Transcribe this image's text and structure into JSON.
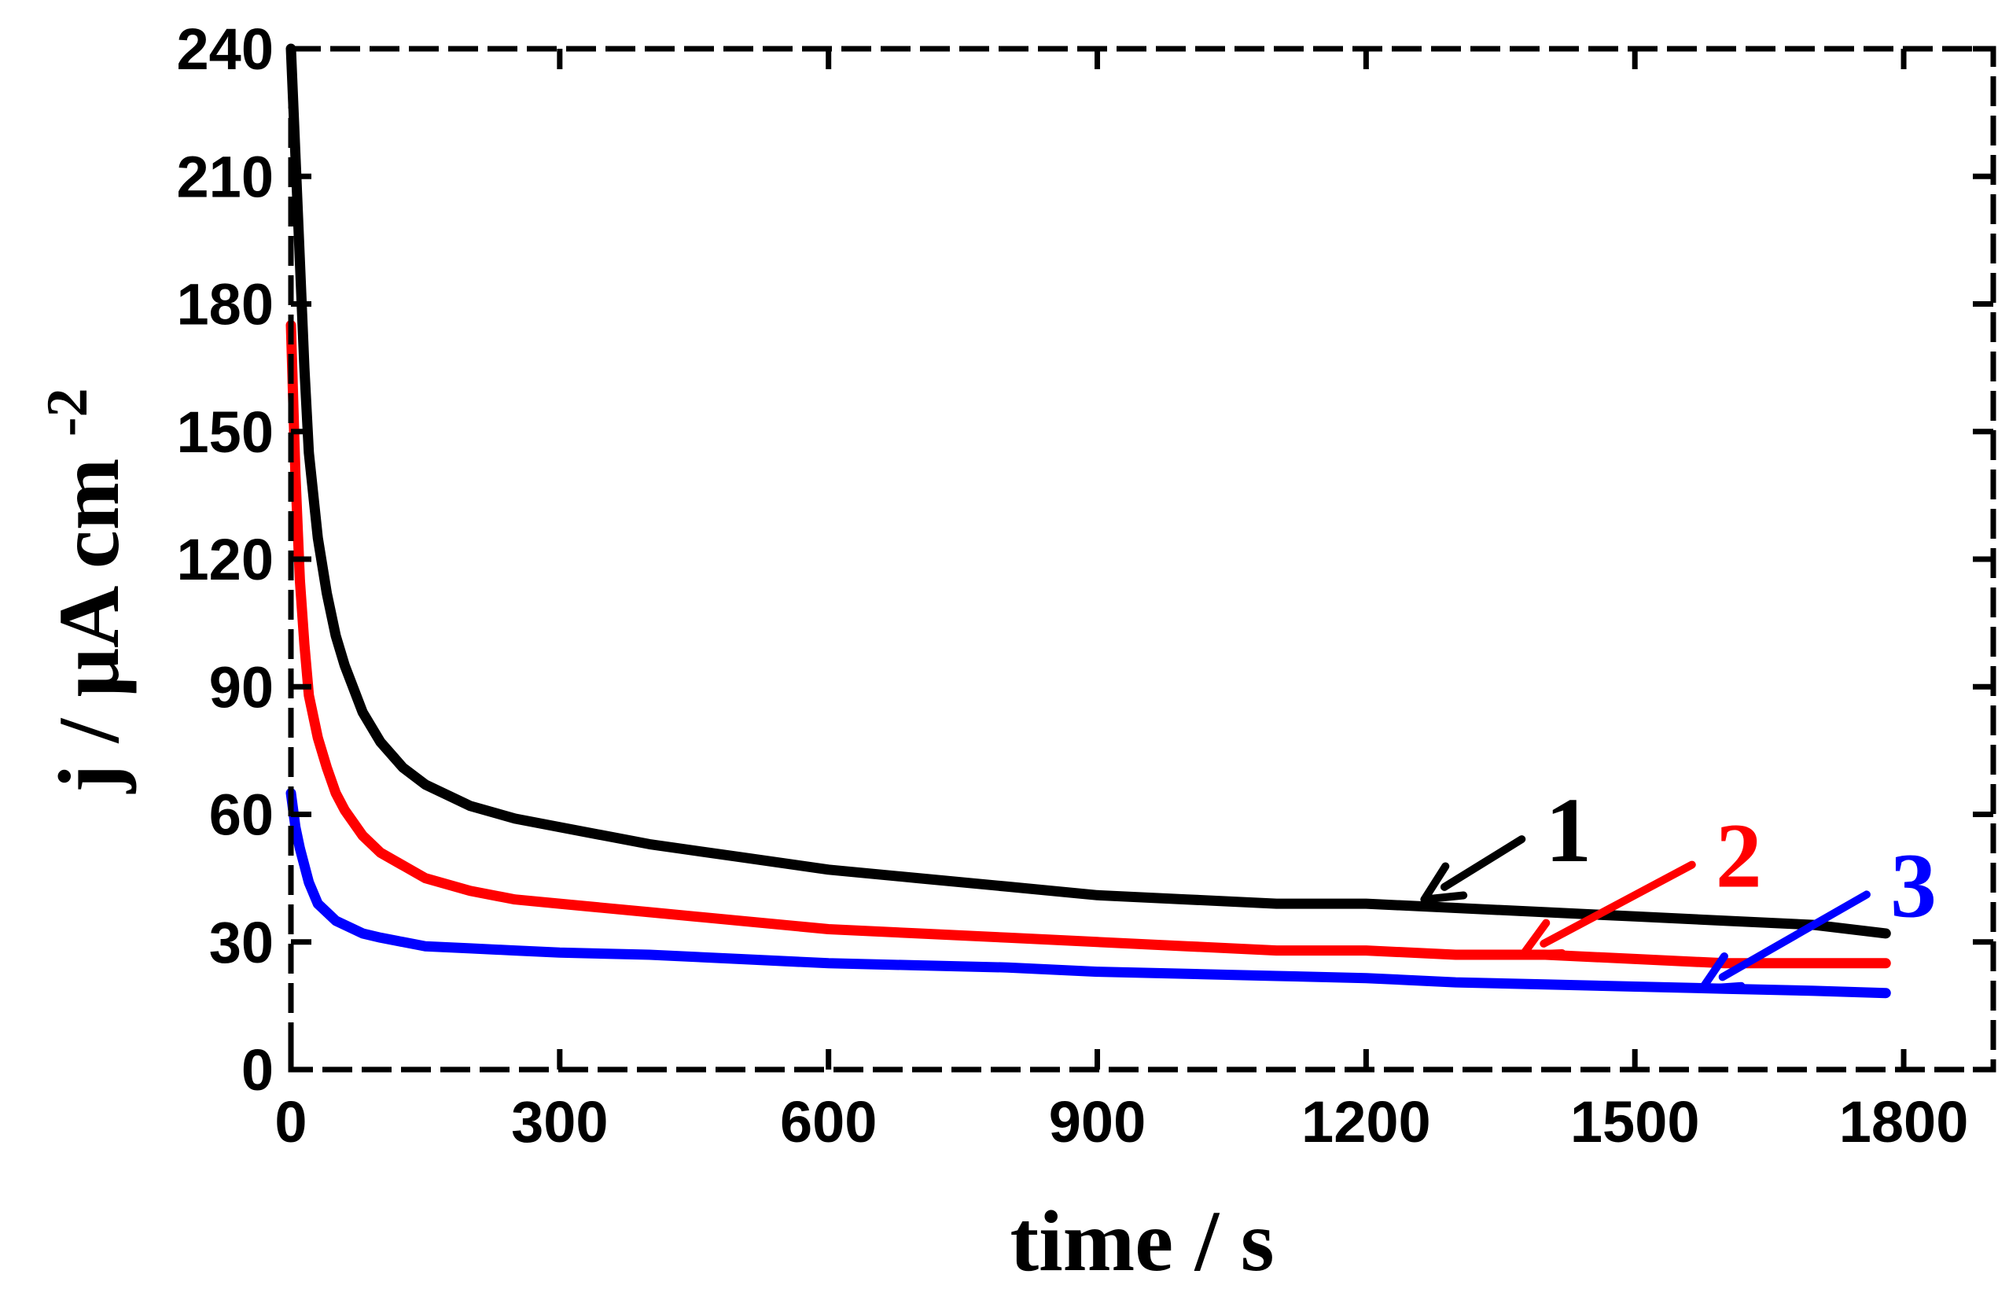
{
  "chart_data": {
    "type": "line",
    "title": "",
    "xlabel": "time / s",
    "ylabel": {
      "base": "j / μA cm",
      "superscript": "-2"
    },
    "xlim": [
      0,
      1900
    ],
    "ylim": [
      0,
      240
    ],
    "xticks": [
      0,
      300,
      600,
      900,
      1200,
      1500,
      1800
    ],
    "xtick_labels": [
      "0",
      "300",
      "600",
      "900",
      "1200",
      "1500",
      "1800"
    ],
    "yticks": [
      0,
      30,
      60,
      90,
      120,
      150,
      180,
      210,
      240
    ],
    "ytick_labels": [
      "0",
      "30",
      "60",
      "90",
      "120",
      "150",
      "180",
      "210",
      "240"
    ],
    "grid": false,
    "legend": "none",
    "series": [
      {
        "name": "1",
        "color": "#000000",
        "x": [
          0,
          5,
          10,
          15,
          20,
          30,
          40,
          50,
          60,
          80,
          100,
          125,
          150,
          200,
          250,
          300,
          400,
          500,
          600,
          700,
          800,
          900,
          1000,
          1100,
          1200,
          1300,
          1400,
          1500,
          1600,
          1700,
          1780
        ],
        "y": [
          240,
          215,
          190,
          165,
          145,
          125,
          112,
          102,
          95,
          84,
          77,
          71,
          67,
          62,
          59,
          57,
          53,
          50,
          47,
          45,
          43,
          41,
          40,
          39,
          39,
          38,
          37,
          36,
          35,
          34,
          32
        ]
      },
      {
        "name": "2",
        "color": "#ff0000",
        "x": [
          0,
          5,
          10,
          15,
          20,
          30,
          40,
          50,
          60,
          80,
          100,
          125,
          150,
          200,
          250,
          300,
          400,
          500,
          600,
          700,
          800,
          900,
          1000,
          1100,
          1200,
          1300,
          1400,
          1500,
          1600,
          1700,
          1780
        ],
        "y": [
          175,
          140,
          115,
          100,
          88,
          78,
          71,
          65,
          61,
          55,
          51,
          48,
          45,
          42,
          40,
          39,
          37,
          35,
          33,
          32,
          31,
          30,
          29,
          28,
          28,
          27,
          27,
          26,
          25,
          25,
          25
        ]
      },
      {
        "name": "3",
        "color": "#0000ff",
        "x": [
          0,
          5,
          10,
          15,
          20,
          30,
          40,
          50,
          60,
          80,
          100,
          125,
          150,
          200,
          250,
          300,
          400,
          500,
          600,
          700,
          800,
          900,
          1000,
          1100,
          1200,
          1300,
          1400,
          1500,
          1600,
          1700,
          1780
        ],
        "y": [
          65,
          57,
          52,
          48,
          44,
          39,
          37,
          35,
          34,
          32,
          31,
          30,
          29,
          28.5,
          28,
          27.5,
          27,
          26,
          25,
          24.5,
          24,
          23,
          22.5,
          22,
          21.5,
          20.5,
          20,
          19.5,
          19,
          18.5,
          18
        ]
      }
    ],
    "annotations": [
      {
        "text": "1",
        "color": "#000000",
        "label_at": [
          1400,
          56
        ],
        "arrow_to": [
          1265,
          40
        ]
      },
      {
        "text": "2",
        "color": "#ff0000",
        "label_at": [
          1590,
          50
        ],
        "arrow_to": [
          1375,
          27
        ]
      },
      {
        "text": "3",
        "color": "#0000ff",
        "label_at": [
          1785,
          43
        ],
        "arrow_to": [
          1575,
          19
        ]
      }
    ]
  }
}
